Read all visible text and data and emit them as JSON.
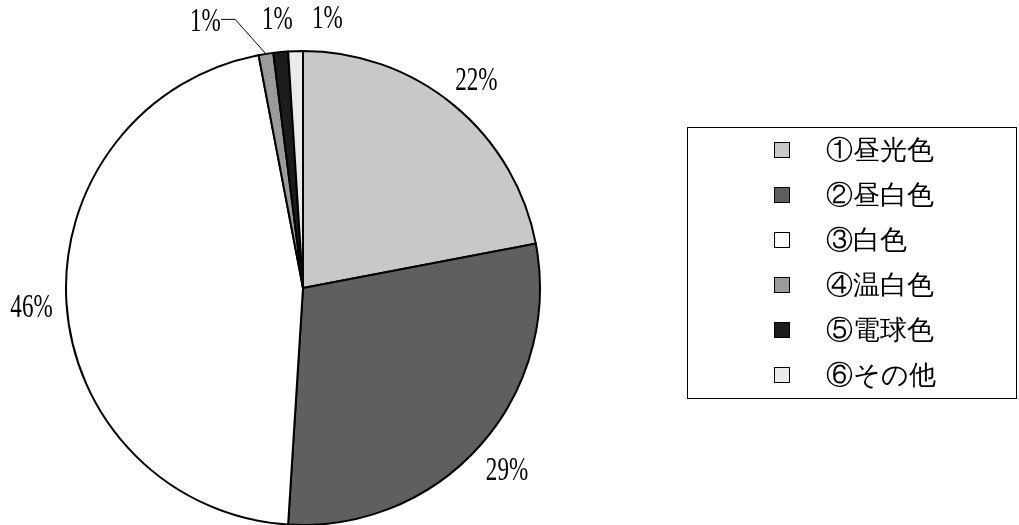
{
  "chart_data": {
    "type": "pie",
    "categories": [
      "①昼光色",
      "②昼白色",
      "③白色",
      "④温白色",
      "⑤電球色",
      "⑥その他"
    ],
    "values": [
      22,
      29,
      46,
      1,
      1,
      1
    ],
    "colors": [
      "#c8c8c8",
      "#5f5f5f",
      "#ffffff",
      "#9b9b9b",
      "#1c1c1c",
      "#ebebeb"
    ],
    "value_labels": [
      "22%",
      "29%",
      "46%",
      "1%",
      "1%",
      "1%"
    ],
    "legend": "right"
  }
}
